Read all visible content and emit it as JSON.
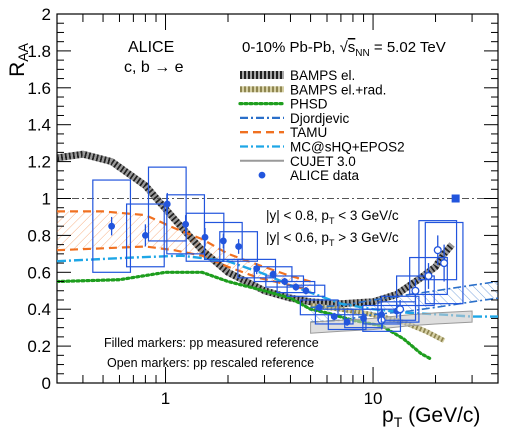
{
  "chart_data": {
    "type": "scatter",
    "xlabel": "p",
    "xlabel_sub": "T",
    "xlabel_unit": " (GeV/c)",
    "ylabel": "R",
    "ylabel_sub": "AA",
    "xscale": "log",
    "xlim": [
      0.3,
      40
    ],
    "ylim": [
      0,
      2
    ],
    "x_tick_labels": [
      {
        "x": 1,
        "label": "1"
      },
      {
        "x": 10,
        "label": "10"
      }
    ],
    "y_ticks": [
      0,
      0.2,
      0.4,
      0.6,
      0.8,
      1,
      1.2,
      1.4,
      1.6,
      1.8,
      2
    ],
    "y_tick_labels": [
      "0",
      "0.2",
      "0.4",
      "0.6",
      "0.8",
      "1",
      "1.2",
      "1.4",
      "1.6",
      "1.8",
      "2"
    ],
    "reference_line": 1,
    "experiment": "ALICE",
    "process": "c, b → e",
    "system_pre": "0-10% Pb-Pb, ",
    "system_energy_sym": "s",
    "system_energy_sub": "NN",
    "system_energy_val": " = 5.02 TeV",
    "rapidity_low": "|y| < 0.8, p",
    "rapidity_low_cut": " < 3 GeV/c",
    "rapidity_high": "|y| < 0.6, p",
    "rapidity_high_cut": " > 3 GeV/c",
    "note_filled": "Filled markers: pp measured reference",
    "note_open": "Open markers: pp rescaled reference",
    "legend": [
      {
        "label": "BAMPS el.",
        "color": "#333333",
        "style": "hatched-thick"
      },
      {
        "label": "BAMPS el.+rad.",
        "color": "#b5ad6e",
        "style": "hatched"
      },
      {
        "label": "PHSD",
        "color": "#1e9e1e",
        "style": "dotted"
      },
      {
        "label": "Djordjevic",
        "color": "#2a6fc9",
        "style": "dashdot"
      },
      {
        "label": "TAMU",
        "color": "#f07020",
        "style": "dashed"
      },
      {
        "label": "MC@sHQ+EPOS2",
        "color": "#1ea6e6",
        "style": "dashdot"
      },
      {
        "label": "CUJET 3.0",
        "color": "#9a9a9a",
        "style": "solid"
      },
      {
        "label": "ALICE data",
        "color": "#2255dd",
        "style": "marker"
      }
    ],
    "series": [
      {
        "name": "ALICE data",
        "marker": "filled",
        "color": "#2255dd",
        "points": [
          {
            "x": 0.55,
            "y": 0.85,
            "err": 0.05,
            "sys": 0.25
          },
          {
            "x": 0.8,
            "y": 0.8,
            "err": 0.06,
            "sys": 0.17
          },
          {
            "x": 1.02,
            "y": 0.97,
            "err": 0.06,
            "sys": 0.2
          },
          {
            "x": 1.25,
            "y": 0.86,
            "err": 0.05,
            "sys": 0.16
          },
          {
            "x": 1.55,
            "y": 0.79,
            "err": 0.05,
            "sys": 0.13
          },
          {
            "x": 1.9,
            "y": 0.77,
            "err": 0.04,
            "sys": 0.1
          },
          {
            "x": 2.25,
            "y": 0.74,
            "err": 0.04,
            "sys": 0.08
          },
          {
            "x": 2.75,
            "y": 0.62,
            "err": 0.03,
            "sys": 0.05
          },
          {
            "x": 3.3,
            "y": 0.59,
            "err": 0.02,
            "sys": 0.04
          },
          {
            "x": 3.75,
            "y": 0.55,
            "err": 0.02,
            "sys": 0.03
          },
          {
            "x": 4.25,
            "y": 0.52,
            "err": 0.02,
            "sys": 0.03
          },
          {
            "x": 4.75,
            "y": 0.5,
            "err": 0.02,
            "sys": 0.03
          },
          {
            "x": 5.5,
            "y": 0.41,
            "err": 0.02,
            "sys": 0.04
          },
          {
            "x": 6.5,
            "y": 0.36,
            "err": 0.02,
            "sys": 0.04
          },
          {
            "x": 7.5,
            "y": 0.33,
            "err": 0.02,
            "sys": 0.04
          },
          {
            "x": 9,
            "y": 0.35,
            "err": 0.03,
            "sys": 0.05
          },
          {
            "x": 11,
            "y": 0.37,
            "err": 0.03,
            "sys": 0.05
          },
          {
            "x": 13,
            "y": 0.39,
            "err": 0.04,
            "sys": 0.05
          }
        ]
      },
      {
        "name": "",
        "marker": "open",
        "color": "#2255dd",
        "points": [
          {
            "x": 11,
            "y": 0.34,
            "err": 0.05,
            "sys": 0.06
          },
          {
            "x": 13.5,
            "y": 0.4,
            "err": 0.05,
            "sys": 0.07
          },
          {
            "x": 16,
            "y": 0.5,
            "err": 0.06,
            "sys": 0.08
          },
          {
            "x": 18.5,
            "y": 0.58,
            "err": 0.07,
            "sys": 0.1
          },
          {
            "x": 20.5,
            "y": 0.72,
            "err": 0.08,
            "sys": 0.16
          },
          {
            "x": 22,
            "y": 0.65,
            "err": 0.1,
            "sys": 0.22
          }
        ]
      }
    ],
    "norm_box": {
      "x": 25,
      "y": 1.0,
      "color": "#2255dd"
    },
    "models": [
      {
        "name": "BAMPS el.",
        "points": [
          [
            0.3,
            1.22
          ],
          [
            0.4,
            1.24
          ],
          [
            0.55,
            1.2
          ],
          [
            0.8,
            1.07
          ],
          [
            1.1,
            0.89
          ],
          [
            1.5,
            0.72
          ],
          [
            2,
            0.6
          ],
          [
            3,
            0.5
          ],
          [
            4,
            0.46
          ],
          [
            5,
            0.44
          ],
          [
            7,
            0.43
          ],
          [
            10,
            0.44
          ],
          [
            13,
            0.48
          ],
          [
            17,
            0.57
          ],
          [
            20,
            0.63
          ],
          [
            22,
            0.7
          ],
          [
            24,
            0.75
          ]
        ]
      },
      {
        "name": "BAMPS el.+rad.",
        "points": [
          [
            5,
            0.42
          ],
          [
            7,
            0.4
          ],
          [
            10,
            0.37
          ],
          [
            14,
            0.33
          ],
          [
            18,
            0.28
          ],
          [
            22,
            0.23
          ]
        ]
      },
      {
        "name": "PHSD",
        "points": [
          [
            0.3,
            0.55
          ],
          [
            0.6,
            0.56
          ],
          [
            1.0,
            0.6
          ],
          [
            1.5,
            0.6
          ],
          [
            2,
            0.55
          ],
          [
            3,
            0.5
          ],
          [
            4,
            0.46
          ],
          [
            5,
            0.4
          ],
          [
            6,
            0.38
          ],
          [
            8,
            0.34
          ],
          [
            11,
            0.31
          ],
          [
            14,
            0.24
          ],
          [
            17,
            0.16
          ],
          [
            19,
            0.13
          ]
        ]
      },
      {
        "name": "Djordjevic",
        "band": [
          [
            5,
            0.33,
            0.41
          ],
          [
            7,
            0.34,
            0.42
          ],
          [
            10,
            0.37,
            0.45
          ],
          [
            15,
            0.39,
            0.48
          ],
          [
            20,
            0.41,
            0.5
          ],
          [
            30,
            0.44,
            0.53
          ],
          [
            40,
            0.46,
            0.55
          ]
        ]
      },
      {
        "name": "TAMU",
        "band": [
          [
            0.3,
            0.72,
            0.93
          ],
          [
            0.5,
            0.73,
            0.93
          ],
          [
            0.8,
            0.74,
            0.91
          ],
          [
            1.1,
            0.72,
            0.84
          ],
          [
            1.5,
            0.69,
            0.78
          ],
          [
            2,
            0.63,
            0.7
          ],
          [
            2.8,
            0.57,
            0.64
          ],
          [
            4,
            0.53,
            0.58
          ],
          [
            5,
            0.5,
            0.55
          ]
        ]
      },
      {
        "name": "MC@sHQ+EPOS2",
        "points": [
          [
            0.3,
            0.66
          ],
          [
            0.7,
            0.68
          ],
          [
            1.2,
            0.69
          ],
          [
            2,
            0.66
          ],
          [
            3,
            0.59
          ],
          [
            4,
            0.53
          ],
          [
            5,
            0.49
          ],
          [
            7,
            0.43
          ],
          [
            10,
            0.4
          ],
          [
            15,
            0.38
          ],
          [
            22,
            0.37
          ],
          [
            30,
            0.36
          ],
          [
            40,
            0.36
          ]
        ]
      },
      {
        "name": "CUJET 3.0",
        "band": [
          [
            5,
            0.27,
            0.33
          ],
          [
            7,
            0.28,
            0.34
          ],
          [
            10,
            0.29,
            0.35
          ],
          [
            15,
            0.31,
            0.37
          ],
          [
            20,
            0.32,
            0.38
          ],
          [
            30,
            0.33,
            0.39
          ]
        ]
      }
    ]
  }
}
